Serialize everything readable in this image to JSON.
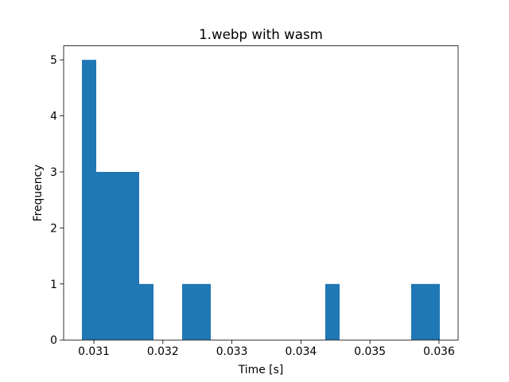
{
  "chart_data": {
    "type": "histogram",
    "title": "1.webp with wasm",
    "x_label": "Time [s]",
    "y_label": "Frequency",
    "bins": [
      0.030827,
      0.0310344,
      0.0312418,
      0.0314492,
      0.0316566,
      0.031864,
      0.0320714,
      0.0322788,
      0.0324862,
      0.0326936,
      0.032901,
      0.0331084,
      0.0333158,
      0.0335232,
      0.0337306,
      0.033938,
      0.0341454,
      0.0343528,
      0.0345602,
      0.0347676,
      0.034975,
      0.0351824,
      0.0353898,
      0.0355972,
      0.0358046,
      0.036012
    ],
    "values": [
      5,
      3,
      3,
      3,
      1,
      0,
      0,
      1,
      1,
      0,
      0,
      0,
      0,
      0,
      0,
      0,
      0,
      1,
      0,
      0,
      0,
      0,
      0,
      1,
      1
    ],
    "color": "#1f77b4",
    "xlim": [
      0.030562,
      0.036277
    ],
    "xticks": [
      0.031,
      0.032,
      0.033,
      0.034,
      0.035,
      0.036
    ],
    "ylim": [
      0,
      5.25
    ],
    "yticks": [
      0,
      1,
      2,
      3,
      4,
      5
    ]
  }
}
